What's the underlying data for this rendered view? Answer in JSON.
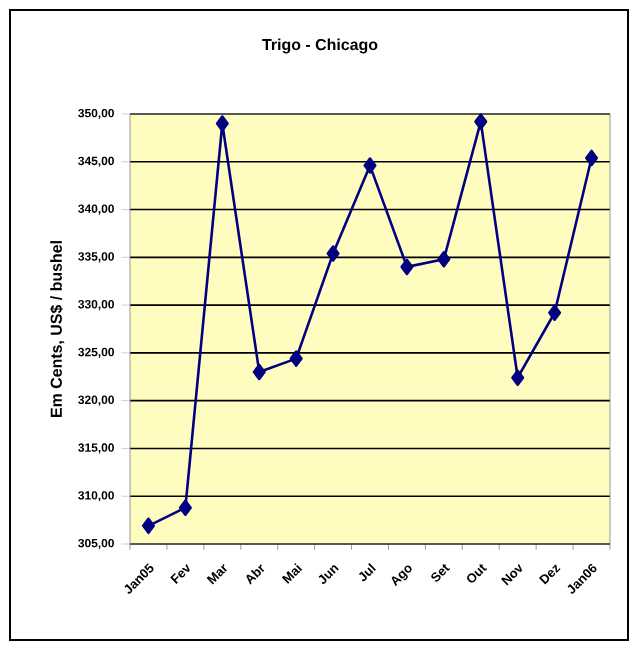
{
  "chart_data": {
    "type": "line",
    "title": "Trigo - Chicago",
    "ylabel": "Em Cents, US$ / bushel",
    "categories": [
      "Jan05",
      "Fev",
      "Mar",
      "Abr",
      "Mai",
      "Jun",
      "Jul",
      "Ago",
      "Set",
      "Out",
      "Nov",
      "Dez",
      "Jan06"
    ],
    "series": [
      {
        "color": "#000080",
        "values": [
          306.9,
          308.8,
          349.0,
          323.0,
          324.4,
          335.4,
          344.6,
          334.0,
          334.8,
          349.2,
          322.4,
          329.2,
          345.4
        ]
      }
    ],
    "ylim": [
      305,
      350
    ],
    "yticks": [
      {
        "value": 305,
        "label": "305,00"
      },
      {
        "value": 310,
        "label": "310,00"
      },
      {
        "value": 315,
        "label": "315,00"
      },
      {
        "value": 320,
        "label": "320,00"
      },
      {
        "value": 325,
        "label": "325,00"
      },
      {
        "value": 330,
        "label": "330,00"
      },
      {
        "value": 335,
        "label": "335,00"
      },
      {
        "value": 340,
        "label": "340,00"
      },
      {
        "value": 345,
        "label": "345,00"
      },
      {
        "value": 350,
        "label": "350,00"
      }
    ],
    "grid": "y",
    "marker": "diamond",
    "line_style": "solid"
  }
}
